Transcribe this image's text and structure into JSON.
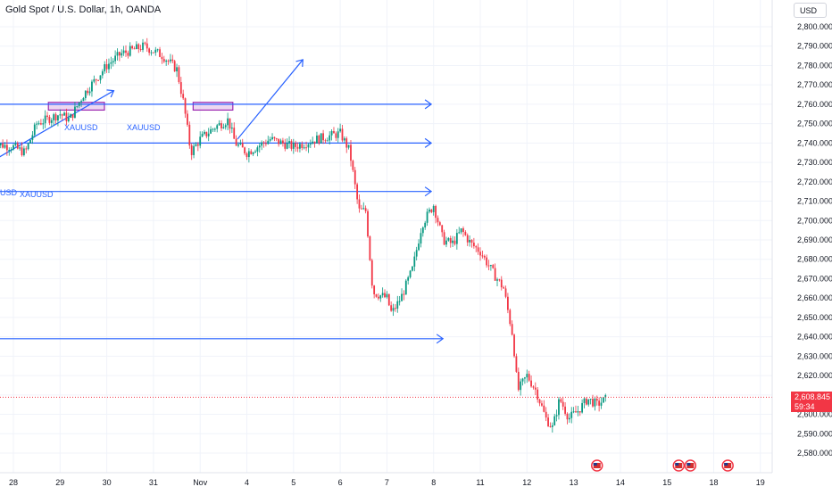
{
  "header": {
    "title": "Gold Spot / U.S. Dollar, 1h, OANDA"
  },
  "currency": {
    "label": "USD"
  },
  "price_badge": {
    "price": "2,608.845",
    "countdown": "59:34"
  },
  "colors": {
    "up": "#089981",
    "down": "#f23645",
    "drawing": "#2962ff",
    "zone": "#9c27b0",
    "zone_fill": "#e1bee7"
  },
  "annotations": {
    "label_1": "XAUUSD",
    "label_2": "XAUUSD",
    "label_3": "XAUUSD",
    "label_4": "USD"
  },
  "events": [
    "us-flag-icon",
    "us-flag-icon",
    "us-flag-icon",
    "us-flag-icon"
  ],
  "chart_data": {
    "type": "candlestick",
    "title": "Gold Spot / U.S. Dollar, 1h, OANDA",
    "ylim": [
      2575,
      2805
    ],
    "y_ticks": [
      2580,
      2590,
      2600,
      2610,
      2620,
      2630,
      2640,
      2650,
      2660,
      2670,
      2680,
      2690,
      2700,
      2710,
      2720,
      2730,
      2740,
      2750,
      2760,
      2770,
      2780,
      2790,
      2800
    ],
    "x_ticks": [
      "28",
      "29",
      "30",
      "31",
      "Nov",
      "4",
      "5",
      "6",
      "7",
      "8",
      "11",
      "12",
      "13",
      "14",
      "15",
      "18",
      "19"
    ],
    "x_tick_index": [
      0,
      1,
      2,
      3,
      4,
      5,
      6,
      7,
      8,
      9,
      10,
      11,
      12,
      13,
      14,
      15,
      16
    ],
    "current_price": 2608.845,
    "series": [
      {
        "path": [
          [
            -0.5,
            2740
          ],
          [
            0,
            2738
          ],
          [
            0.25,
            2735
          ],
          [
            0.5,
            2750
          ],
          [
            1,
            2755
          ],
          [
            1.2,
            2752
          ],
          [
            1.5,
            2765
          ],
          [
            2,
            2780
          ],
          [
            2.3,
            2786
          ],
          [
            2.8,
            2790
          ],
          [
            3.2,
            2785
          ],
          [
            3.5,
            2778
          ],
          [
            3.65,
            2760
          ],
          [
            3.8,
            2735
          ],
          [
            4.0,
            2742
          ],
          [
            4.3,
            2748
          ],
          [
            4.6,
            2752
          ],
          [
            4.75,
            2740
          ],
          [
            5.0,
            2735
          ],
          [
            5.5,
            2742
          ],
          [
            6.0,
            2738
          ],
          [
            6.5,
            2742
          ],
          [
            7.0,
            2745
          ],
          [
            7.2,
            2736
          ],
          [
            7.4,
            2705
          ],
          [
            7.55,
            2705
          ],
          [
            7.7,
            2663
          ],
          [
            8.0,
            2660
          ],
          [
            8.1,
            2652
          ],
          [
            8.3,
            2660
          ],
          [
            8.55,
            2675
          ],
          [
            8.75,
            2698
          ],
          [
            9.0,
            2708
          ],
          [
            9.2,
            2690
          ],
          [
            9.4,
            2688
          ],
          [
            9.6,
            2695
          ],
          [
            9.8,
            2688
          ],
          [
            10.0,
            2684
          ],
          [
            10.3,
            2672
          ],
          [
            10.5,
            2665
          ],
          [
            10.7,
            2640
          ],
          [
            10.8,
            2612
          ],
          [
            11.0,
            2620
          ],
          [
            11.2,
            2612
          ],
          [
            11.4,
            2598
          ],
          [
            11.55,
            2593
          ],
          [
            11.7,
            2608
          ],
          [
            11.9,
            2598
          ],
          [
            12.1,
            2602
          ],
          [
            12.3,
            2608
          ],
          [
            12.5,
            2605
          ],
          [
            12.7,
            2608
          ]
        ]
      }
    ],
    "hlines": [
      2760,
      2740,
      2715,
      2639
    ],
    "zones": [
      {
        "x0": 0.75,
        "x1": 1.95,
        "y0": 2757,
        "y1": 2761
      },
      {
        "x0": 3.85,
        "x1": 4.7,
        "y0": 2757,
        "y1": 2761
      }
    ],
    "trend_lines": [
      {
        "x0": -0.5,
        "y0": 2730,
        "x1": 2.15,
        "y1": 2767
      },
      {
        "x0": 4.8,
        "y0": 2742,
        "x1": 6.2,
        "y1": 2783
      }
    ]
  }
}
